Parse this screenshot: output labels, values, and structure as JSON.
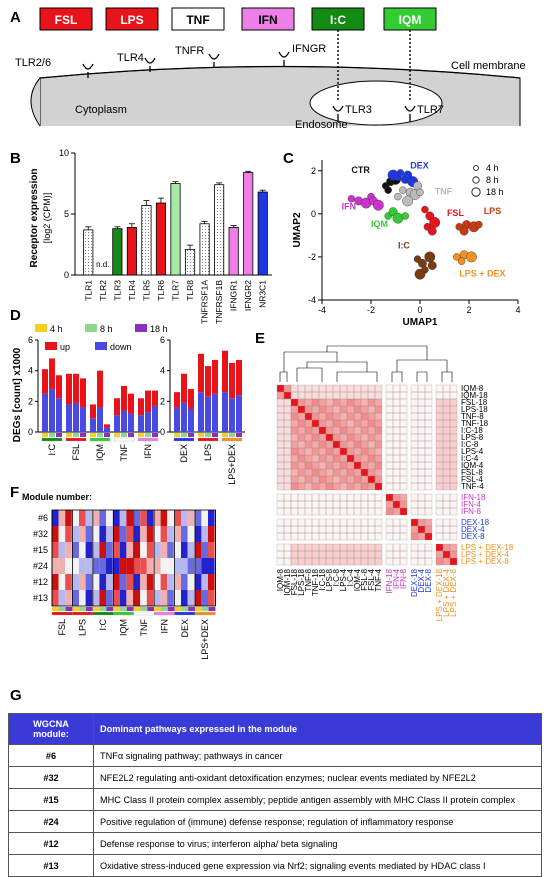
{
  "panels": {
    "A": "A",
    "B": "B",
    "C": "C",
    "D": "D",
    "E": "E",
    "F": "F",
    "G": "G"
  },
  "panelA": {
    "stimuli": [
      {
        "label": "FSL",
        "bg": "#e8141a",
        "fg": "#fff"
      },
      {
        "label": "LPS",
        "bg": "#e8141a",
        "fg": "#fff"
      },
      {
        "label": "TNF",
        "bg": "#ffffff",
        "fg": "#000"
      },
      {
        "label": "IFN",
        "bg": "#ee7ee8",
        "fg": "#000"
      },
      {
        "label": "I:C",
        "bg": "#138a13",
        "fg": "#fff"
      },
      {
        "label": "IQM",
        "bg": "#33cc33",
        "fg": "#fff"
      }
    ],
    "receptors": [
      "TLR2/6",
      "TLR4",
      "TNFR",
      "IFNGR"
    ],
    "cell_membrane": "Cell membrane",
    "cytoplasm": "Cytoplasm",
    "endosome": "Endosome",
    "endo_receptors": [
      "TLR3",
      "TLR7"
    ]
  },
  "chart_data": [
    {
      "id": "B",
      "type": "bar",
      "ylabel": "Receptor expression",
      "ylabel2": "[log2 (CPM)]",
      "ylim": [
        0,
        10
      ],
      "yticks": [
        0,
        5,
        10
      ],
      "categories": [
        "TLR1",
        "TLR2",
        "TLR3",
        "TLR4",
        "TLR5",
        "TLR6",
        "TLR7",
        "TLR8",
        "TNFRSF1A",
        "TNFRSF1B",
        "IFNGR1",
        "IFNGR2",
        "NR3C1"
      ],
      "values": [
        3.7,
        null,
        3.8,
        3.9,
        5.7,
        5.9,
        7.5,
        2.1,
        4.2,
        7.4,
        3.9,
        8.4,
        6.8
      ],
      "errors": [
        0.25,
        null,
        0.15,
        0.3,
        0.4,
        0.4,
        0.15,
        0.35,
        0.2,
        0.15,
        0.15,
        0.1,
        0.15
      ],
      "colors": [
        "#ffffff",
        "#ffffff",
        "#138a13",
        "#e8141a",
        "#ffffff",
        "#e8141a",
        "#a6e8a6",
        "#ffffff",
        "#ffffff",
        "#ffffff",
        "#ee7ee8",
        "#ee7ee8",
        "#1f38e0"
      ],
      "hatched": [
        true,
        false,
        false,
        false,
        true,
        false,
        false,
        true,
        true,
        true,
        false,
        false,
        false
      ],
      "nd_label": "n.d."
    },
    {
      "id": "C",
      "type": "scatter",
      "xlabel": "UMAP1",
      "ylabel": "UMAP2",
      "xlim": [
        -4,
        4
      ],
      "ylim": [
        -4,
        2.5
      ],
      "xticks": [
        -4,
        -2,
        0,
        2,
        4
      ],
      "yticks": [
        -4,
        -2,
        0,
        2
      ],
      "legend": [
        "4 h",
        "8 h",
        "18 h"
      ],
      "groups": [
        {
          "name": "CTR",
          "color": "#111111",
          "points": [
            [
              -1.4,
              1.3
            ],
            [
              -1.2,
              1.5
            ],
            [
              -1.0,
              1.6
            ],
            [
              -1.3,
              1.1
            ]
          ]
        },
        {
          "name": "DEX",
          "color": "#1f38e0",
          "points": [
            [
              -0.9,
              1.7
            ],
            [
              -0.6,
              1.6
            ],
            [
              -0.3,
              1.5
            ],
            [
              -0.8,
              1.9
            ],
            [
              -0.5,
              1.8
            ],
            [
              -1.1,
              1.8
            ]
          ]
        },
        {
          "name": "TNF",
          "color": "#bbbbbb",
          "points": [
            [
              -0.7,
              1.1
            ],
            [
              -0.4,
              1.0
            ],
            [
              -0.2,
              0.9
            ],
            [
              -0.9,
              0.8
            ],
            [
              -0.1,
              1.3
            ],
            [
              -0.5,
              0.6
            ],
            [
              0.0,
              1.0
            ]
          ]
        },
        {
          "name": "IFN",
          "color": "#cc33cc",
          "points": [
            [
              -2.8,
              0.7
            ],
            [
              -2.5,
              0.6
            ],
            [
              -2.2,
              0.5
            ],
            [
              -2.0,
              0.8
            ],
            [
              -1.9,
              0.6
            ],
            [
              -1.7,
              0.4
            ]
          ]
        },
        {
          "name": "FSL",
          "color": "#e8141a",
          "points": [
            [
              0.2,
              0.2
            ],
            [
              0.4,
              -0.1
            ],
            [
              0.6,
              -0.4
            ],
            [
              0.3,
              -0.6
            ],
            [
              0.5,
              -0.8
            ]
          ]
        },
        {
          "name": "IQM",
          "color": "#33cc33",
          "points": [
            [
              -1.3,
              -0.1
            ],
            [
              -1.1,
              0.1
            ],
            [
              -0.9,
              -0.2
            ],
            [
              -0.6,
              -0.1
            ]
          ]
        },
        {
          "name": "LPS",
          "color": "#c83a10",
          "points": [
            [
              1.6,
              -0.6
            ],
            [
              1.9,
              -0.5
            ],
            [
              2.2,
              -0.6
            ],
            [
              2.4,
              -0.5
            ],
            [
              1.8,
              -0.8
            ]
          ]
        },
        {
          "name": "I:C",
          "color": "#7a3a12",
          "points": [
            [
              -0.1,
              -2.1
            ],
            [
              0.1,
              -2.3
            ],
            [
              0.4,
              -2.0
            ],
            [
              0.2,
              -2.6
            ],
            [
              0.5,
              -2.4
            ],
            [
              0.0,
              -2.8
            ]
          ]
        },
        {
          "name": "LPS + DEX",
          "color": "#f29020",
          "points": [
            [
              1.5,
              -2.0
            ],
            [
              1.8,
              -1.9
            ],
            [
              2.1,
              -2.0
            ],
            [
              1.7,
              -2.2
            ]
          ]
        }
      ]
    },
    {
      "id": "D",
      "type": "bar",
      "ylabel": "DEGs [count] x1000",
      "ylim": [
        0,
        6
      ],
      "yticks": [
        0,
        2,
        4,
        6
      ],
      "legend_time": [
        "4 h",
        "8 h",
        "18 h"
      ],
      "legend_dir": [
        "up",
        "down"
      ],
      "groups_left": [
        "I:C",
        "FSL",
        "IQM",
        "TNF",
        "IFN"
      ],
      "groups_right": [
        "DEX",
        "LPS",
        "LPS+DEX"
      ],
      "series": [
        {
          "name": "down",
          "values": [
            2.5,
            2.8,
            2.2,
            1.8,
            1.9,
            1.6,
            0.9,
            1.6,
            0.3,
            1.1,
            1.4,
            1.2,
            1.1,
            1.3,
            1.7,
            1.6,
            1.9,
            1.5,
            2.6,
            2.3,
            2.5,
            2.6,
            2.2,
            2.4
          ]
        },
        {
          "name": "up",
          "values": [
            1.6,
            2.0,
            1.5,
            2.0,
            1.9,
            1.9,
            0.9,
            2.4,
            0.2,
            1.1,
            1.6,
            1.3,
            1.1,
            1.4,
            1.0,
            1.0,
            1.9,
            1.3,
            2.5,
            2.0,
            2.2,
            2.7,
            2.3,
            2.3
          ]
        }
      ]
    },
    {
      "id": "E",
      "type": "heatmap",
      "rows": [
        "IQM-8",
        "IQM-18",
        "FSL-18",
        "LPS-18",
        "TNF-8",
        "TNF-18",
        "I:C-18",
        "LPS-8",
        "I:C-8",
        "LPS-4",
        "I:C-4",
        "IQM-4",
        "FSL-8",
        "FSL-4",
        "TNF-4",
        "IFN-18",
        "IFN-4",
        "IFN-8",
        "DEX-18",
        "DEX-4",
        "DEX-8",
        "LPS + DEX-18",
        "LPS + DEX-4",
        "LPS + DEX-8"
      ],
      "row_colors": [
        "#000",
        "#000",
        "#000",
        "#000",
        "#000",
        "#000",
        "#000",
        "#000",
        "#000",
        "#000",
        "#000",
        "#000",
        "#000",
        "#000",
        "#000",
        "#cc33cc",
        "#cc33cc",
        "#cc33cc",
        "#1f38e0",
        "#1f38e0",
        "#1f38e0",
        "#f29020",
        "#f29020",
        "#f29020"
      ]
    },
    {
      "id": "F",
      "type": "heatmap",
      "title": "Module number:",
      "rows": [
        "#6",
        "#32",
        "#15",
        "#24",
        "#12",
        "#13"
      ],
      "columns": [
        "FSL",
        "LPS",
        "I:C",
        "IQM",
        "TNF",
        "IFN",
        "DEX",
        "LPS+DEX"
      ]
    }
  ],
  "tableG": {
    "header": [
      "WGCNA module:",
      "Dominant pathways expressed in the module"
    ],
    "rows": [
      [
        "#6",
        "TNFα signaling pathway; pathways in cancer"
      ],
      [
        "#32",
        "NFE2L2 regulating anti-oxidant detoxification enzymes; nuclear events mediated by NFE2L2"
      ],
      [
        "#15",
        "MHC Class II protein complex assembly; peptide antigen assembly with MHC Class II protein complex"
      ],
      [
        "#24",
        "Positive regulation of (immune) defense response; regulation of inflammatory response"
      ],
      [
        "#12",
        "Defense response to virus; interferon alpha/ beta signaling"
      ],
      [
        "#13",
        "Oxidative stress-induced gene expression via Nrf2; signaling events mediated by HDAC class I"
      ]
    ]
  }
}
